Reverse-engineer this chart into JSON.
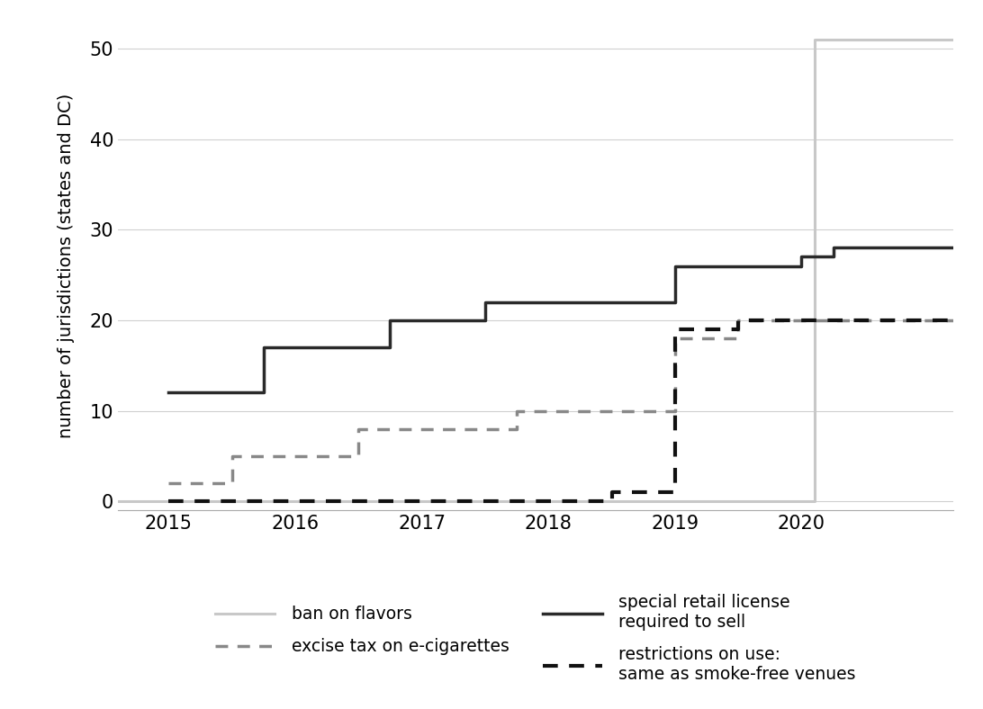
{
  "ylabel": "number of jurisdictions (states and DC)",
  "ylim": [
    -1,
    53
  ],
  "yticks": [
    0,
    10,
    20,
    30,
    40,
    50
  ],
  "xlim": [
    2014.6,
    2021.2
  ],
  "xticks": [
    2015,
    2016,
    2017,
    2018,
    2019,
    2020
  ],
  "background_color": "#ffffff",
  "grid_color": "#d0d0d0",
  "series": [
    {
      "label": "ban on flavors",
      "color": "#c8c8c8",
      "linestyle": "solid",
      "linewidth": 2.2,
      "x": [
        2014.6,
        2020.1,
        2020.1,
        2021.2
      ],
      "y": [
        0,
        0,
        51,
        51
      ]
    },
    {
      "label": "special retail license required to sell",
      "color": "#2a2a2a",
      "linestyle": "solid",
      "linewidth": 2.5,
      "x": [
        2015.0,
        2015.75,
        2015.75,
        2016.0,
        2016.0,
        2016.75,
        2016.75,
        2017.0,
        2017.0,
        2017.5,
        2017.5,
        2017.75,
        2017.75,
        2018.0,
        2018.0,
        2018.5,
        2018.5,
        2018.75,
        2018.75,
        2019.0,
        2019.0,
        2019.5,
        2019.5,
        2020.0,
        2020.0,
        2020.25,
        2020.25,
        2021.2
      ],
      "y": [
        12,
        12,
        17,
        17,
        17,
        17,
        20,
        20,
        20,
        20,
        22,
        22,
        22,
        22,
        22,
        22,
        22,
        22,
        22,
        22,
        26,
        26,
        26,
        26,
        27,
        27,
        28,
        28
      ]
    },
    {
      "label": "excise tax on e-cigarettes",
      "color": "#888888",
      "linestyle": "dotted",
      "linewidth": 2.5,
      "x": [
        2015.0,
        2015.5,
        2015.5,
        2016.0,
        2016.0,
        2016.5,
        2016.5,
        2017.0,
        2017.0,
        2017.75,
        2017.75,
        2018.0,
        2018.0,
        2018.5,
        2018.5,
        2019.0,
        2019.0,
        2019.5,
        2019.5,
        2021.2
      ],
      "y": [
        2,
        2,
        5,
        5,
        5,
        5,
        8,
        8,
        8,
        8,
        10,
        10,
        10,
        10,
        10,
        10,
        18,
        18,
        20,
        20
      ]
    },
    {
      "label": "restrictions on use: same as smoke-free venues",
      "color": "#111111",
      "linestyle": "dotted",
      "linewidth": 3.0,
      "x": [
        2015.0,
        2017.75,
        2017.75,
        2018.5,
        2018.5,
        2018.75,
        2018.75,
        2019.0,
        2019.0,
        2019.5,
        2019.5,
        2021.2
      ],
      "y": [
        0,
        0,
        0,
        0,
        1,
        1,
        1,
        1,
        19,
        19,
        20,
        20
      ]
    }
  ]
}
